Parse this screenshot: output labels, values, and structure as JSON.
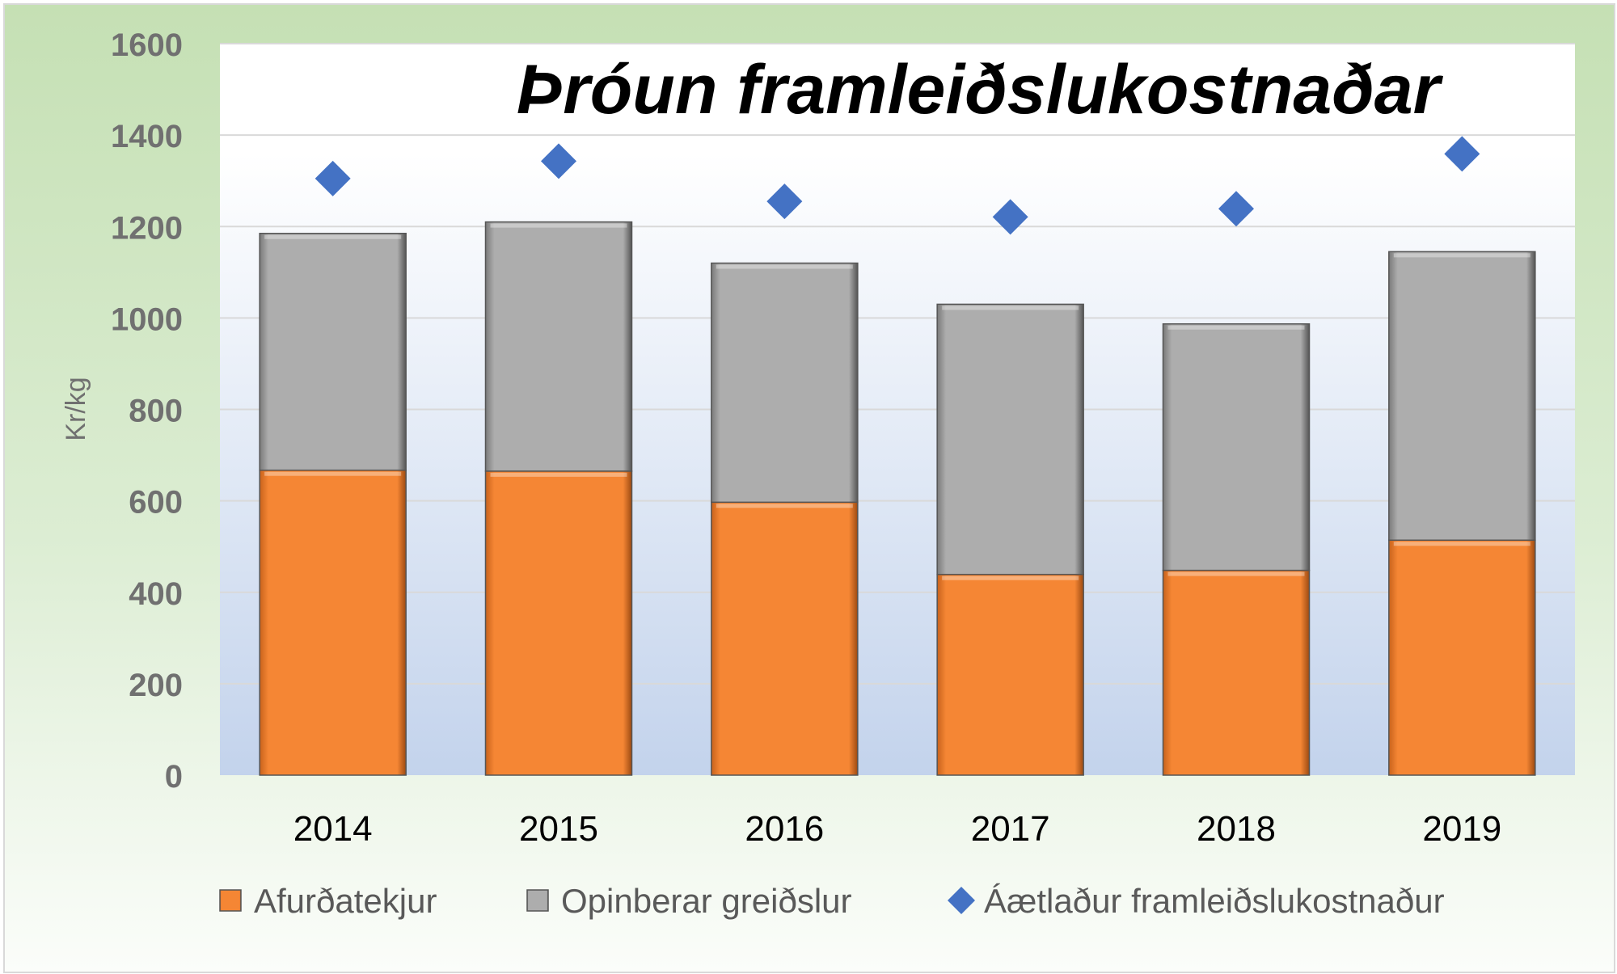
{
  "chart_data": {
    "type": "bar",
    "stacked": true,
    "title": "Þróun framleiðslukostnaðar",
    "ylabel": "Kr/kg",
    "xlabel": "",
    "ylim": [
      0,
      1600
    ],
    "yticks": [
      0,
      200,
      400,
      600,
      800,
      1000,
      1200,
      1400,
      1600
    ],
    "categories": [
      "2014",
      "2015",
      "2016",
      "2017",
      "2018",
      "2019"
    ],
    "series": [
      {
        "name": "Afurðatekjur",
        "type": "bar",
        "color": "#f58634",
        "values": [
          667,
          665,
          597,
          439,
          448,
          514
        ]
      },
      {
        "name": "Opinberar greiðslur",
        "type": "bar",
        "color": "#a9a9a9",
        "values": [
          518,
          545,
          523,
          591,
          539,
          631
        ]
      },
      {
        "name": "Áætlaður framleiðslukostnaður",
        "type": "scatter",
        "marker": "diamond",
        "color": "#4472c4",
        "values": [
          1305,
          1343,
          1255,
          1221,
          1239,
          1359
        ]
      }
    ],
    "grid": true,
    "legend": "bottom"
  }
}
